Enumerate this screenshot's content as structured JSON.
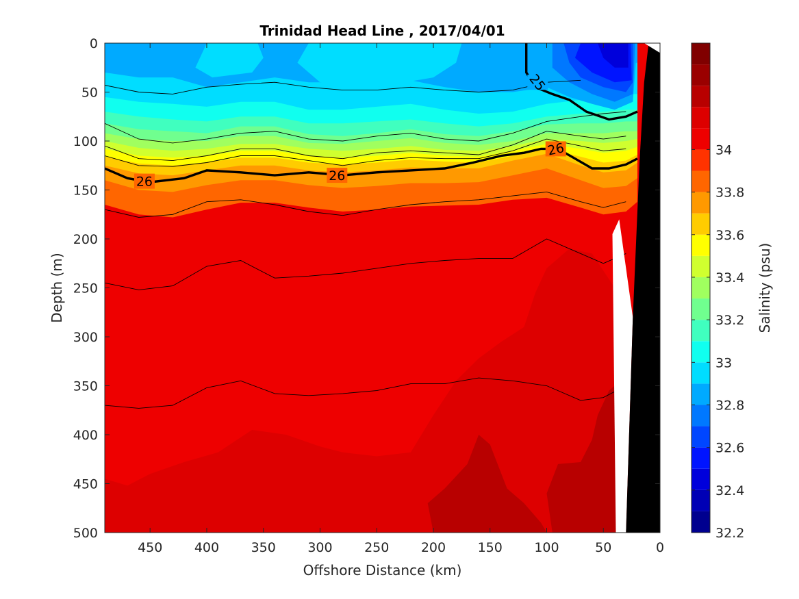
{
  "chart_data": {
    "type": "heatmap",
    "subtype": "filled-contour section",
    "title": "Trinidad Head Line , 2017/04/01",
    "xlabel": "Offshore Distance (km)",
    "ylabel": "Depth (m)",
    "xlim": [
      490,
      0
    ],
    "ylim": [
      0,
      500
    ],
    "x_reversed": true,
    "y_reversed": true,
    "x_ticks": [
      450,
      400,
      350,
      300,
      250,
      200,
      150,
      100,
      50,
      0
    ],
    "y_ticks": [
      0,
      50,
      100,
      150,
      200,
      250,
      300,
      350,
      400,
      450,
      500
    ],
    "colorbar": {
      "label": "Salinity (psu)",
      "range": [
        32.2,
        34.5
      ],
      "ticks": [
        32.2,
        32.4,
        32.6,
        32.8,
        33,
        33.2,
        33.4,
        33.6,
        33.8,
        34
      ],
      "levels": [
        32.2,
        32.3,
        32.4,
        32.5,
        32.6,
        32.7,
        32.8,
        32.9,
        33.0,
        33.1,
        33.2,
        33.3,
        33.4,
        33.5,
        33.6,
        33.7,
        33.8,
        33.9,
        34.0,
        34.1,
        34.2,
        34.3,
        34.4,
        34.5
      ],
      "colors": [
        "#00008f",
        "#0000b5",
        "#0000db",
        "#0014ff",
        "#0046ff",
        "#0078ff",
        "#00aaff",
        "#00ddff",
        "#10ffef",
        "#40ffbf",
        "#70ff8f",
        "#a0ff5f",
        "#d0ff2f",
        "#ffff00",
        "#ffcc00",
        "#ff9900",
        "#ff6600",
        "#ff3300",
        "#ee0000",
        "#dd0000",
        "#b80000",
        "#9a0000",
        "#800000"
      ]
    },
    "grid": false,
    "x_samples": [
      490,
      460,
      430,
      400,
      370,
      340,
      310,
      280,
      250,
      220,
      190,
      160,
      130,
      100,
      70,
      50,
      30,
      20
    ],
    "salinity_boundaries": [
      {
        "level": 32.9,
        "depth": [
          30,
          35,
          35,
          45,
          40,
          35,
          40,
          40,
          38,
          38,
          45,
          50,
          50,
          45,
          35,
          28,
          22,
          20
        ]
      },
      {
        "level": 33.0,
        "depth": [
          55,
          60,
          62,
          65,
          60,
          60,
          68,
          68,
          65,
          62,
          68,
          72,
          70,
          62,
          58,
          55,
          52,
          52
        ]
      },
      {
        "level": 33.1,
        "depth": [
          70,
          75,
          78,
          80,
          75,
          75,
          82,
          82,
          80,
          78,
          82,
          85,
          82,
          75,
          72,
          70,
          68,
          68
        ]
      },
      {
        "level": 33.2,
        "depth": [
          82,
          88,
          90,
          92,
          85,
          85,
          93,
          95,
          92,
          88,
          93,
          95,
          90,
          83,
          82,
          82,
          80,
          80
        ]
      },
      {
        "level": 33.3,
        "depth": [
          92,
          98,
          100,
          100,
          95,
          95,
          102,
          103,
          100,
          97,
          102,
          104,
          100,
          92,
          92,
          92,
          90,
          90
        ]
      },
      {
        "level": 33.4,
        "depth": [
          100,
          107,
          110,
          108,
          103,
          103,
          108,
          110,
          108,
          105,
          109,
          110,
          105,
          98,
          100,
          102,
          100,
          98
        ]
      },
      {
        "level": 33.5,
        "depth": [
          108,
          115,
          117,
          115,
          110,
          110,
          115,
          117,
          115,
          112,
          115,
          116,
          110,
          103,
          108,
          112,
          110,
          106
        ]
      },
      {
        "level": 33.6,
        "depth": [
          116,
          123,
          125,
          122,
          117,
          117,
          122,
          124,
          122,
          119,
          121,
          122,
          115,
          108,
          116,
          122,
          120,
          114
        ]
      },
      {
        "level": 33.7,
        "depth": [
          125,
          133,
          135,
          130,
          125,
          125,
          130,
          132,
          130,
          127,
          128,
          128,
          120,
          113,
          125,
          132,
          130,
          122
        ]
      },
      {
        "level": 33.8,
        "depth": [
          140,
          150,
          152,
          145,
          140,
          140,
          145,
          148,
          146,
          143,
          143,
          142,
          135,
          128,
          140,
          148,
          146,
          138
        ]
      },
      {
        "level": 33.9,
        "depth": [
          165,
          175,
          178,
          170,
          163,
          163,
          168,
          172,
          170,
          167,
          166,
          165,
          160,
          158,
          168,
          175,
          172,
          162
        ]
      }
    ],
    "deep_zones": [
      {
        "level": 34.1,
        "boundary": [
          [
            490,
            445
          ],
          [
            470,
            452
          ],
          [
            450,
            440
          ],
          [
            420,
            428
          ],
          [
            390,
            418
          ],
          [
            360,
            395
          ],
          [
            330,
            400
          ],
          [
            300,
            412
          ],
          [
            280,
            418
          ],
          [
            250,
            422
          ],
          [
            220,
            418
          ],
          [
            200,
            380
          ],
          [
            180,
            345
          ],
          [
            160,
            322
          ],
          [
            140,
            305
          ],
          [
            120,
            290
          ],
          [
            110,
            255
          ],
          [
            100,
            230
          ],
          [
            80,
            210
          ],
          [
            60,
            215
          ],
          [
            40,
            250
          ],
          [
            30,
            300
          ],
          [
            30,
            500
          ],
          [
            490,
            500
          ]
        ]
      },
      {
        "level": 34.2,
        "boundary": [
          [
            200,
            500
          ],
          [
            205,
            470
          ],
          [
            190,
            455
          ],
          [
            170,
            430
          ],
          [
            160,
            400
          ],
          [
            150,
            410
          ],
          [
            135,
            455
          ],
          [
            120,
            470
          ],
          [
            105,
            490
          ],
          [
            100,
            500
          ]
        ]
      },
      {
        "level": 34.2,
        "boundary": [
          [
            95,
            500
          ],
          [
            100,
            460
          ],
          [
            90,
            430
          ],
          [
            70,
            428
          ],
          [
            60,
            405
          ],
          [
            55,
            380
          ],
          [
            45,
            355
          ],
          [
            35,
            345
          ],
          [
            32,
            500
          ]
        ]
      }
    ],
    "isopycnals": [
      {
        "depth": [
          43,
          50,
          52,
          45,
          42,
          40,
          45,
          48,
          48,
          45,
          48,
          50,
          48,
          40,
          38
        ]
      },
      {
        "depth": [
          82,
          98,
          102,
          98,
          92,
          90,
          98,
          100,
          95,
          92,
          98,
          100,
          92,
          80,
          75,
          72,
          70
        ]
      },
      {
        "depth": [
          105,
          118,
          120,
          115,
          108,
          108,
          115,
          118,
          112,
          110,
          112,
          114,
          104,
          90,
          95,
          98,
          95
        ]
      },
      {
        "depth": [
          115,
          125,
          126,
          122,
          115,
          115,
          120,
          125,
          120,
          117,
          118,
          118,
          110,
          98,
          105,
          110,
          108
        ]
      },
      {
        "depth": [
          170,
          178,
          175,
          162,
          160,
          165,
          172,
          176,
          170,
          165,
          162,
          160,
          156,
          152,
          162,
          168,
          162
        ]
      },
      {
        "depth": [
          245,
          252,
          248,
          228,
          222,
          240,
          238,
          235,
          230,
          225,
          222,
          220,
          220,
          200,
          215,
          225,
          215
        ]
      },
      {
        "depth": [
          370,
          373,
          370,
          352,
          345,
          358,
          360,
          358,
          355,
          348,
          348,
          342,
          345,
          350,
          365,
          362,
          350
        ]
      }
    ],
    "labeled_isopycnals": [
      {
        "label": "25",
        "points": [
          [
            118,
            0
          ],
          [
            118,
            30
          ],
          [
            110,
            45
          ],
          [
            95,
            52
          ],
          [
            80,
            58
          ],
          [
            65,
            70
          ],
          [
            45,
            78
          ],
          [
            30,
            75
          ],
          [
            20,
            70
          ]
        ]
      },
      {
        "label": "26",
        "points": [
          [
            490,
            128
          ],
          [
            470,
            138
          ],
          [
            450,
            142
          ],
          [
            420,
            138
          ],
          [
            400,
            130
          ],
          [
            370,
            132
          ],
          [
            340,
            135
          ],
          [
            310,
            132
          ],
          [
            280,
            135
          ],
          [
            250,
            132
          ],
          [
            220,
            130
          ],
          [
            190,
            128
          ],
          [
            165,
            122
          ],
          [
            140,
            115
          ],
          [
            120,
            112
          ],
          [
            105,
            108
          ],
          [
            90,
            108
          ],
          [
            75,
            118
          ],
          [
            60,
            128
          ],
          [
            45,
            128
          ],
          [
            30,
            124
          ],
          [
            20,
            118
          ]
        ]
      }
    ],
    "bottom_bathymetry": [
      [
        30,
        500
      ],
      [
        24,
        280
      ],
      [
        18,
        120
      ],
      [
        14,
        40
      ],
      [
        10,
        0
      ],
      [
        0,
        0
      ],
      [
        0,
        500
      ]
    ],
    "no_data_region": [
      [
        39,
        500
      ],
      [
        42,
        195
      ],
      [
        36,
        180
      ],
      [
        24,
        280
      ],
      [
        30,
        500
      ]
    ]
  }
}
